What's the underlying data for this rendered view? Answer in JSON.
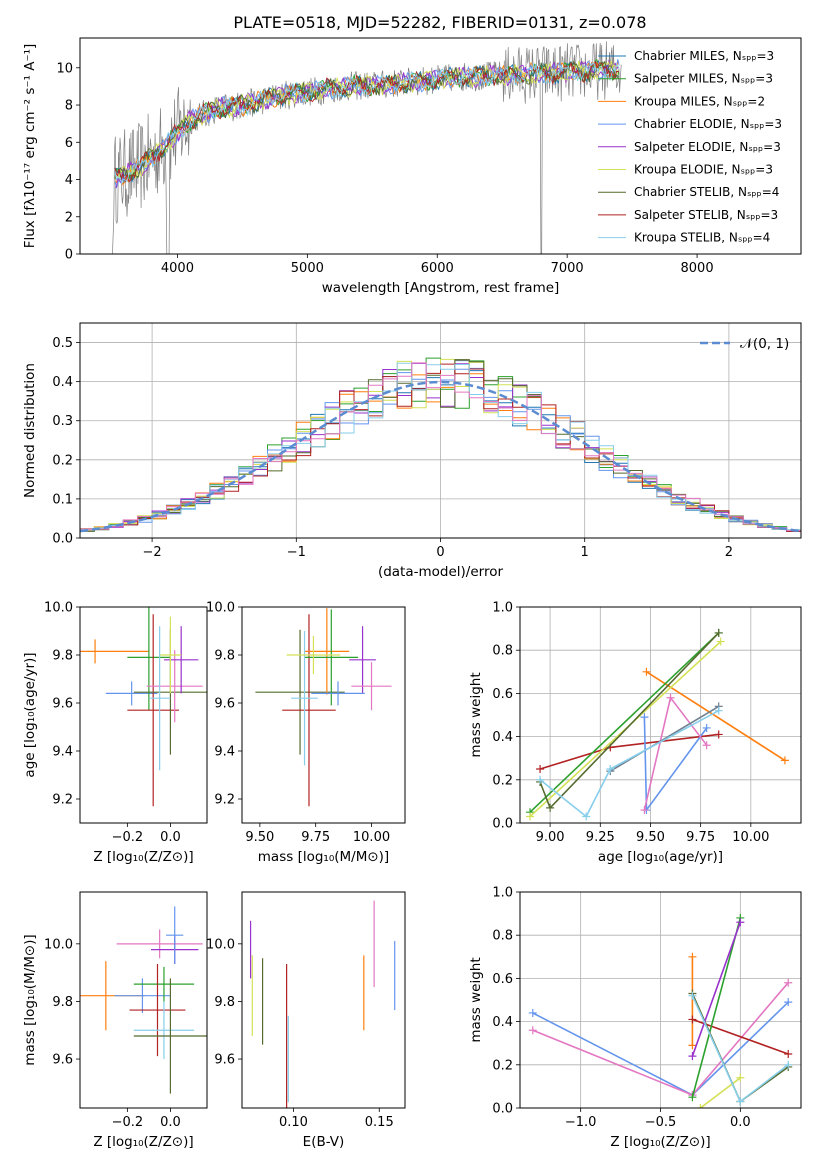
{
  "title": "PLATE=0518, MJD=52282, FIBERID=0131, z=0.078",
  "chart_data": [
    {
      "type": "line",
      "panel": "spectrum",
      "xlabel": "wavelength [Angstrom, rest frame]",
      "ylabel": "Flux [fλ10⁻¹⁷ erg cm⁻² s⁻¹ A⁻¹]",
      "xlim": [
        3250,
        8800
      ],
      "ylim": [
        0,
        11.6
      ],
      "xticks": [
        "4000",
        "5000",
        "6000",
        "7000",
        "8000"
      ],
      "yticks": [
        "0",
        "2",
        "4",
        "6",
        "8",
        "10"
      ],
      "data_color": "#7f7f7f",
      "legend_position": "upper right",
      "series": [
        {
          "name": "Chabrier MILES, Nₛₚₚ=3",
          "color": "#1f77b4"
        },
        {
          "name": "Salpeter MILES, Nₛₚₚ=3",
          "color": "#2ca02c"
        },
        {
          "name": "Kroupa MILES, Nₛₚₚ=2",
          "color": "#ff7f0e"
        },
        {
          "name": "Chabrier ELODIE, Nₛₚₚ=3",
          "color": "#6495ed"
        },
        {
          "name": "Salpeter ELODIE, Nₛₚₚ=3",
          "color": "#9932cc"
        },
        {
          "name": "Kroupa ELODIE, Nₛₚₚ=3",
          "color": "#d4e157"
        },
        {
          "name": "Chabrier STELIB, Nₛₚₚ=4",
          "color": "#556b2f"
        },
        {
          "name": "Salpeter STELIB, Nₛₚₚ=3",
          "color": "#b22222"
        },
        {
          "name": "Kroupa STELIB, Nₛₚₚ=4",
          "color": "#87ceeb"
        }
      ],
      "continuum_x": [
        3500,
        3700,
        3900,
        4100,
        4300,
        4500,
        4800,
        5000,
        5300,
        5600,
        5900,
        6200,
        6500,
        6800,
        7100,
        7400
      ],
      "continuum_y": [
        4.0,
        4.6,
        5.8,
        7.2,
        7.8,
        8.0,
        8.5,
        8.7,
        9.0,
        9.1,
        9.3,
        9.5,
        9.6,
        9.7,
        9.8,
        9.9
      ]
    },
    {
      "type": "histogram",
      "panel": "residuals",
      "xlabel": "(data-model)/error",
      "ylabel": "Normed distribution",
      "xlim": [
        -2.5,
        2.5
      ],
      "ylim": [
        0,
        0.55
      ],
      "xticks": [
        "−2",
        "−1",
        "0",
        "1",
        "2"
      ],
      "yticks": [
        "0.0",
        "0.1",
        "0.2",
        "0.3",
        "0.4",
        "0.5"
      ],
      "grid": true,
      "legend": "𝒩(0, 1)",
      "legend_color": "#5b8bd0",
      "bin_width": 0.1,
      "series_colors": [
        "#1f77b4",
        "#2ca02c",
        "#ff7f0e",
        "#6495ed",
        "#9932cc",
        "#d4e157",
        "#556b2f",
        "#b22222",
        "#87ceeb",
        "#e377c2"
      ]
    },
    {
      "type": "scatter",
      "panel": "age-vs-Z",
      "xlabel": "Z [log₁₀(Z/Z⊙)]",
      "ylabel": "age  [log₁₀(age/yr)]",
      "xlim": [
        -0.42,
        0.17
      ],
      "ylim": [
        9.1,
        10.0
      ],
      "xticks": [
        "−0.2",
        "0.0"
      ],
      "yticks": [
        "9.2",
        "9.4",
        "9.6",
        "9.8",
        "10.0"
      ],
      "points": [
        {
          "x": -0.35,
          "y": 9.815,
          "xe": 0.25,
          "ye": 0.05,
          "c": "#ff7f0e"
        },
        {
          "x": -0.18,
          "y": 9.64,
          "xe": 0.12,
          "ye": 0.05,
          "c": "#6495ed"
        },
        {
          "x": -0.1,
          "y": 9.79,
          "xe": 0.1,
          "ye": 0.22,
          "c": "#2ca02c"
        },
        {
          "x": -0.08,
          "y": 9.57,
          "xe": 0.12,
          "ye": 0.4,
          "c": "#b22222"
        },
        {
          "x": 0.0,
          "y": 9.645,
          "xe": 0.17,
          "ye": 0.26,
          "c": "#556b2f"
        },
        {
          "x": 0.02,
          "y": 9.67,
          "xe": 0.13,
          "ye": 0.15,
          "c": "#e377c2"
        },
        {
          "x": 0.05,
          "y": 9.78,
          "xe": 0.08,
          "ye": 0.14,
          "c": "#9932cc"
        },
        {
          "x": 0.0,
          "y": 9.8,
          "xe": 0.05,
          "ye": 0.16,
          "c": "#d4e157"
        },
        {
          "x": -0.05,
          "y": 9.62,
          "xe": 0.05,
          "ye": 0.3,
          "c": "#87ceeb"
        }
      ]
    },
    {
      "type": "scatter",
      "panel": "age-vs-mass",
      "xlabel": "mass [log₁₀(M/M⊙)]",
      "ylabel": "",
      "xlim": [
        9.42,
        10.15
      ],
      "ylim": [
        9.1,
        10.0
      ],
      "xticks": [
        "9.50",
        "9.75",
        "10.00"
      ],
      "yticks": [
        "9.2",
        "9.4",
        "9.6",
        "9.8",
        "10.0"
      ],
      "points": [
        {
          "x": 9.68,
          "y": 9.645,
          "xe": 0.2,
          "ye": 0.26,
          "c": "#556b2f"
        },
        {
          "x": 9.72,
          "y": 9.57,
          "xe": 0.12,
          "ye": 0.4,
          "c": "#b22222"
        },
        {
          "x": 9.8,
          "y": 9.815,
          "xe": 0.1,
          "ye": 0.18,
          "c": "#ff7f0e"
        },
        {
          "x": 9.82,
          "y": 9.79,
          "xe": 0.12,
          "ye": 0.2,
          "c": "#2ca02c"
        },
        {
          "x": 9.7,
          "y": 9.62,
          "xe": 0.06,
          "ye": 0.28,
          "c": "#87ceeb"
        },
        {
          "x": 9.96,
          "y": 9.78,
          "xe": 0.06,
          "ye": 0.14,
          "c": "#9932cc"
        },
        {
          "x": 10.0,
          "y": 9.67,
          "xe": 0.09,
          "ye": 0.1,
          "c": "#e377c2"
        },
        {
          "x": 9.74,
          "y": 9.8,
          "xe": 0.12,
          "ye": 0.08,
          "c": "#d4e157"
        },
        {
          "x": 9.85,
          "y": 9.64,
          "xe": 0.12,
          "ye": 0.05,
          "c": "#6495ed"
        }
      ]
    },
    {
      "type": "line",
      "panel": "weight-vs-age",
      "xlabel": "age  [log₁₀(age/yr)]",
      "ylabel": "mass weight",
      "xlim": [
        8.85,
        10.25
      ],
      "ylim": [
        0,
        1
      ],
      "xticks": [
        "9.00",
        "9.25",
        "9.50",
        "9.75",
        "10.00"
      ],
      "yticks": [
        "0.0",
        "0.2",
        "0.4",
        "0.6",
        "0.8",
        "1.0"
      ],
      "grid": true,
      "series": [
        {
          "c": "#ff7f0e",
          "x": [
            9.48,
            10.17
          ],
          "y": [
            0.7,
            0.29
          ]
        },
        {
          "c": "#b22222",
          "x": [
            8.95,
            9.3,
            9.84
          ],
          "y": [
            0.25,
            0.35,
            0.41
          ]
        },
        {
          "c": "#6495ed",
          "x": [
            9.47,
            9.48,
            9.78
          ],
          "y": [
            0.49,
            0.06,
            0.44
          ]
        },
        {
          "c": "#e377c2",
          "x": [
            9.47,
            9.6,
            9.78
          ],
          "y": [
            0.06,
            0.58,
            0.36
          ]
        },
        {
          "c": "#2ca02c",
          "x": [
            8.9,
            9.84
          ],
          "y": [
            0.05,
            0.88
          ]
        },
        {
          "c": "#d4e157",
          "x": [
            8.9,
            9.85
          ],
          "y": [
            0.03,
            0.84
          ]
        },
        {
          "c": "#556b2f",
          "x": [
            8.95,
            9.0,
            9.84
          ],
          "y": [
            0.19,
            0.07,
            0.88
          ]
        },
        {
          "c": "#708090",
          "x": [
            9.3,
            9.84
          ],
          "y": [
            0.24,
            0.54
          ]
        },
        {
          "c": "#87ceeb",
          "x": [
            8.95,
            9.18,
            9.3,
            9.84
          ],
          "y": [
            0.2,
            0.03,
            0.25,
            0.52
          ]
        }
      ]
    },
    {
      "type": "scatter",
      "panel": "mass-vs-Z",
      "xlabel": "Z [log₁₀(Z/Z⊙)]",
      "ylabel": "mass [log₁₀(M/M⊙)]",
      "xlim": [
        -0.42,
        0.17
      ],
      "ylim": [
        9.43,
        10.18
      ],
      "xticks": [
        "−0.2",
        "0.0"
      ],
      "yticks": [
        "9.6",
        "9.8",
        "10.0"
      ],
      "points": [
        {
          "x": -0.3,
          "y": 9.82,
          "xe": 0.18,
          "ye": 0.12,
          "c": "#ff7f0e"
        },
        {
          "x": -0.13,
          "y": 9.82,
          "xe": 0.13,
          "ye": 0.06,
          "c": "#6495ed"
        },
        {
          "x": -0.05,
          "y": 10.0,
          "xe": 0.2,
          "ye": 0.05,
          "c": "#e377c2"
        },
        {
          "x": 0.02,
          "y": 9.98,
          "xe": 0.11,
          "ye": 0.05,
          "c": "#9932cc"
        },
        {
          "x": -0.03,
          "y": 9.86,
          "xe": 0.14,
          "ye": 0.06,
          "c": "#2ca02c"
        },
        {
          "x": -0.06,
          "y": 9.77,
          "xe": 0.13,
          "ye": 0.16,
          "c": "#b22222"
        },
        {
          "x": -0.03,
          "y": 9.7,
          "xe": 0.14,
          "ye": 0.1,
          "c": "#87ceeb"
        },
        {
          "x": 0.0,
          "y": 9.68,
          "xe": 0.17,
          "ye": 0.2,
          "c": "#556b2f"
        },
        {
          "x": 0.02,
          "y": 10.03,
          "xe": 0.04,
          "ye": 0.1,
          "c": "#6495ed"
        }
      ]
    },
    {
      "type": "scatter",
      "panel": "mass-vs-EBV",
      "xlabel": "E(B-V)",
      "ylabel": "",
      "xlim": [
        0.07,
        0.165
      ],
      "ylim": [
        9.43,
        10.18
      ],
      "xticks": [
        "0.10",
        "0.15"
      ],
      "yticks": [
        "9.6",
        "9.8",
        "10.0"
      ],
      "points": [
        {
          "x": 0.075,
          "y": 9.98,
          "ye": 0.1,
          "c": "#9932cc"
        },
        {
          "x": 0.076,
          "y": 9.82,
          "ye": 0.14,
          "c": "#d4e157"
        },
        {
          "x": 0.082,
          "y": 9.8,
          "ye": 0.15,
          "c": "#556b2f"
        },
        {
          "x": 0.096,
          "y": 9.68,
          "ye": 0.25,
          "c": "#b22222"
        },
        {
          "x": 0.097,
          "y": 9.6,
          "ye": 0.15,
          "c": "#87ceeb"
        },
        {
          "x": 0.141,
          "y": 9.83,
          "ye": 0.13,
          "c": "#ff7f0e"
        },
        {
          "x": 0.147,
          "y": 10.0,
          "ye": 0.15,
          "c": "#e377c2"
        },
        {
          "x": 0.159,
          "y": 9.89,
          "ye": 0.12,
          "c": "#6495ed"
        }
      ]
    },
    {
      "type": "line",
      "panel": "weight-vs-Z",
      "xlabel": "Z [log₁₀(Z/Z⊙)]",
      "ylabel": "mass weight",
      "xlim": [
        -1.38,
        0.38
      ],
      "ylim": [
        0,
        1
      ],
      "xticks": [
        "−1.0",
        "−0.5",
        "0.0"
      ],
      "yticks": [
        "0.0",
        "0.2",
        "0.4",
        "0.6",
        "0.8",
        "1.0"
      ],
      "grid": true,
      "series": [
        {
          "c": "#6495ed",
          "x": [
            -1.3,
            -0.3,
            0.3
          ],
          "y": [
            0.44,
            0.06,
            0.49
          ]
        },
        {
          "c": "#e377c2",
          "x": [
            -1.3,
            -0.3,
            0.3
          ],
          "y": [
            0.36,
            0.06,
            0.58
          ]
        },
        {
          "c": "#ff7f0e",
          "x": [
            -0.3,
            -0.3
          ],
          "y": [
            0.7,
            0.29
          ]
        },
        {
          "c": "#b22222",
          "x": [
            -0.3,
            0.3
          ],
          "y": [
            0.41,
            0.25
          ]
        },
        {
          "c": "#2ca02c",
          "x": [
            -0.3,
            0.0
          ],
          "y": [
            0.05,
            0.88
          ]
        },
        {
          "c": "#d4e157",
          "x": [
            -0.25,
            0.0
          ],
          "y": [
            0.0,
            0.14
          ]
        },
        {
          "c": "#556b2f",
          "x": [
            -0.3,
            0.0,
            0.3
          ],
          "y": [
            0.53,
            0.03,
            0.19
          ]
        },
        {
          "c": "#9932cc",
          "x": [
            -0.3,
            0.0
          ],
          "y": [
            0.24,
            0.86
          ]
        },
        {
          "c": "#87ceeb",
          "x": [
            -0.3,
            0.0,
            0.3
          ],
          "y": [
            0.52,
            0.03,
            0.2
          ]
        }
      ]
    }
  ]
}
